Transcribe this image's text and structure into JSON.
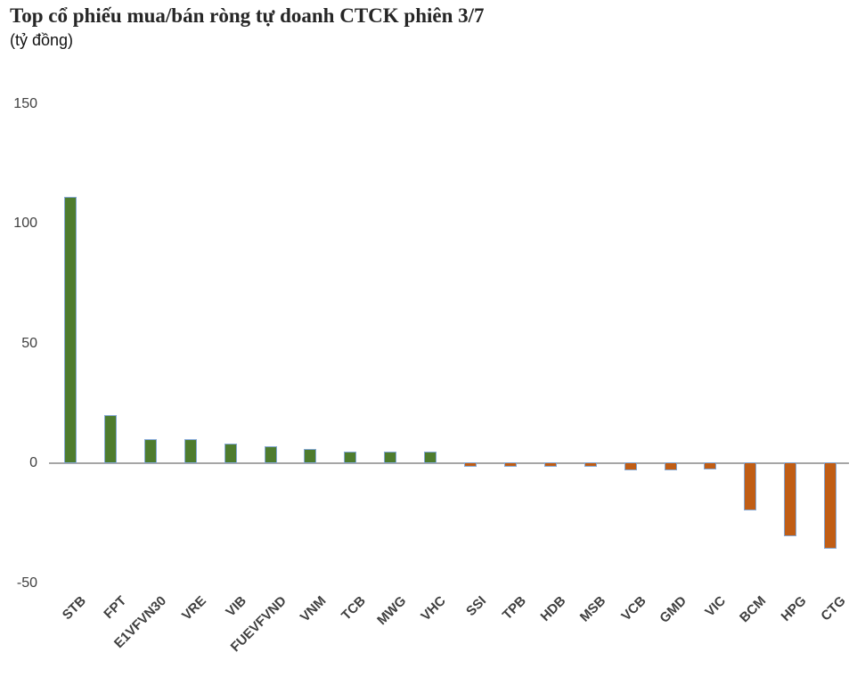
{
  "title": "Top cổ phiếu mua/bán ròng tự doanh CTCK phiên 3/7",
  "subtitle": "(tỷ đồng)",
  "chart_data": {
    "type": "bar",
    "title": "Top cổ phiếu mua/bán ròng tự doanh CTCK phiên 3/7",
    "subtitle": "(tỷ đồng)",
    "unit": "tỷ đồng",
    "categories": [
      "STB",
      "FPT",
      "E1VFVN30",
      "VRE",
      "VIB",
      "FUEVFVND",
      "VNM",
      "TCB",
      "MWG",
      "VHC",
      "SSI",
      "TPB",
      "HDB",
      "MSB",
      "VCB",
      "GMD",
      "VIC",
      "BCM",
      "HPG",
      "CTG"
    ],
    "values": [
      111,
      20,
      10,
      10,
      8,
      7,
      6,
      5,
      5,
      5,
      -2,
      -2,
      -2,
      -2,
      -3.5,
      -3.5,
      -3,
      -20,
      -31,
      -36
    ],
    "xlabel": "",
    "ylabel": "",
    "yticks": [
      150,
      100,
      50,
      0,
      -50
    ],
    "ylim": [
      -50,
      150
    ],
    "grid": false,
    "legend": false,
    "legend_position": "none",
    "colors": {
      "positive_bar": "#4e7c2e",
      "negative_bar": "#c05d15",
      "bar_border": "#84a7d3",
      "axis_line": "#a6a6a6",
      "tick_text": "#3f3f3f",
      "title_text": "#262626",
      "background": "#ffffff"
    }
  }
}
